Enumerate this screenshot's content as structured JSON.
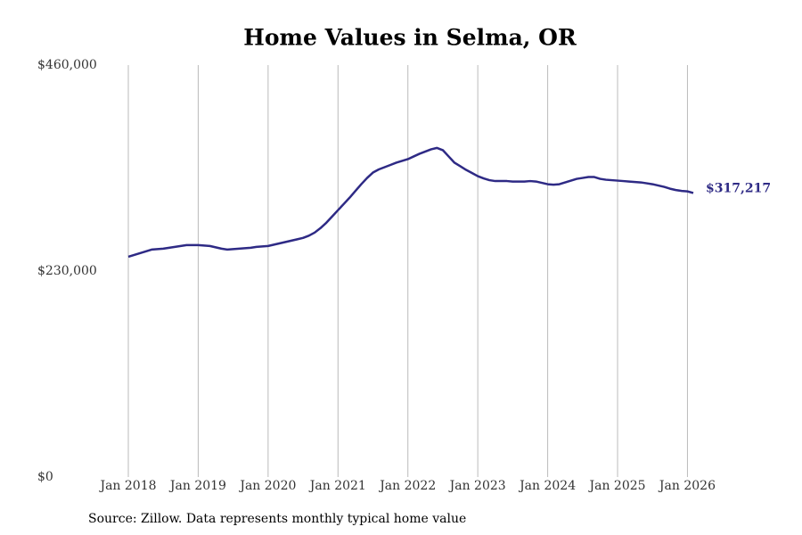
{
  "chart_data": {
    "type": "line",
    "title": "Home Values in Selma, OR",
    "source": "Source: Zillow. Data represents monthly typical home value",
    "x": [
      "2018-01",
      "2018-02",
      "2018-03",
      "2018-04",
      "2018-05",
      "2018-06",
      "2018-07",
      "2018-08",
      "2018-09",
      "2018-10",
      "2018-11",
      "2018-12",
      "2019-01",
      "2019-02",
      "2019-03",
      "2019-04",
      "2019-05",
      "2019-06",
      "2019-07",
      "2019-08",
      "2019-09",
      "2019-10",
      "2019-11",
      "2019-12",
      "2020-01",
      "2020-02",
      "2020-03",
      "2020-04",
      "2020-05",
      "2020-06",
      "2020-07",
      "2020-08",
      "2020-09",
      "2020-10",
      "2020-11",
      "2020-12",
      "2021-01",
      "2021-02",
      "2021-03",
      "2021-04",
      "2021-05",
      "2021-06",
      "2021-07",
      "2021-08",
      "2021-09",
      "2021-10",
      "2021-11",
      "2021-12",
      "2022-01",
      "2022-02",
      "2022-03",
      "2022-04",
      "2022-05",
      "2022-06",
      "2022-07",
      "2022-08",
      "2022-09",
      "2022-10",
      "2022-11",
      "2022-12",
      "2023-01",
      "2023-02",
      "2023-03",
      "2023-04",
      "2023-05",
      "2023-06",
      "2023-07",
      "2023-08",
      "2023-09",
      "2023-10",
      "2023-11",
      "2023-12",
      "2024-01",
      "2024-02",
      "2024-03",
      "2024-04",
      "2024-05",
      "2024-06",
      "2024-07",
      "2024-08",
      "2024-09",
      "2024-10",
      "2024-11",
      "2024-12",
      "2025-01",
      "2025-02",
      "2025-03",
      "2025-04",
      "2025-05",
      "2025-06",
      "2025-07",
      "2025-08",
      "2025-09",
      "2025-10",
      "2025-11",
      "2025-12",
      "2026-01",
      "2026-02"
    ],
    "series": [
      {
        "color": "#2e2a85",
        "values": [
          246000,
          248000,
          250000,
          252000,
          254000,
          254500,
          255000,
          256000,
          257000,
          258000,
          259000,
          259000,
          259000,
          258500,
          258000,
          256500,
          255000,
          254000,
          254500,
          255000,
          255500,
          256000,
          257000,
          257500,
          258000,
          259500,
          261000,
          262500,
          264000,
          265500,
          267000,
          269500,
          273000,
          278000,
          284000,
          291000,
          298000,
          305000,
          312000,
          319500,
          327000,
          334000,
          340000,
          343500,
          346000,
          348500,
          351000,
          353000,
          355000,
          358000,
          361000,
          363500,
          366000,
          367500,
          365000,
          358000,
          351000,
          347000,
          343000,
          339500,
          336000,
          333500,
          331500,
          330500,
          330500,
          330500,
          330000,
          330000,
          330000,
          330500,
          330000,
          328500,
          327000,
          326500,
          327000,
          329000,
          331000,
          333000,
          334000,
          335000,
          335000,
          333000,
          332000,
          331500,
          331000,
          330500,
          330000,
          329500,
          329000,
          328000,
          327000,
          325500,
          324000,
          322000,
          320500,
          319500,
          319000,
          317217
        ],
        "value_labels": [
          null,
          null,
          null,
          null,
          null,
          null,
          null,
          null,
          null,
          null,
          null,
          null,
          null,
          null,
          null,
          null,
          null,
          null,
          null,
          null,
          null,
          null,
          null,
          null,
          null,
          null,
          null,
          null,
          null,
          null,
          null,
          null,
          null,
          null,
          null,
          null,
          null,
          null,
          null,
          null,
          null,
          null,
          null,
          null,
          null,
          null,
          null,
          null,
          null,
          null,
          null,
          null,
          null,
          null,
          null,
          null,
          null,
          null,
          null,
          null,
          null,
          null,
          null,
          null,
          null,
          null,
          null,
          null,
          null,
          null,
          null,
          null,
          null,
          null,
          null,
          null,
          null,
          null,
          null,
          null,
          null,
          null,
          null,
          null,
          null,
          null,
          null,
          null,
          null,
          null,
          null,
          null,
          null,
          null,
          null,
          null,
          null,
          "$317,217"
        ]
      }
    ],
    "xlim": [
      "2018-01",
      "2026-02"
    ],
    "xticks": [
      {
        "value": "2018-01",
        "label": "Jan 2018"
      },
      {
        "value": "2019-01",
        "label": "Jan 2019"
      },
      {
        "value": "2020-01",
        "label": "Jan 2020"
      },
      {
        "value": "2021-01",
        "label": "Jan 2021"
      },
      {
        "value": "2022-01",
        "label": "Jan 2022"
      },
      {
        "value": "2023-01",
        "label": "Jan 2023"
      },
      {
        "value": "2024-01",
        "label": "Jan 2024"
      },
      {
        "value": "2025-01",
        "label": "Jan 2025"
      },
      {
        "value": "2026-01",
        "label": "Jan 2026"
      }
    ],
    "ylim": [
      0,
      460000
    ],
    "yticks": [
      {
        "value": 0,
        "label": "$0"
      },
      {
        "value": 230000,
        "label": "$230,000"
      },
      {
        "value": 460000,
        "label": "$460,000"
      }
    ],
    "grid": "x"
  }
}
